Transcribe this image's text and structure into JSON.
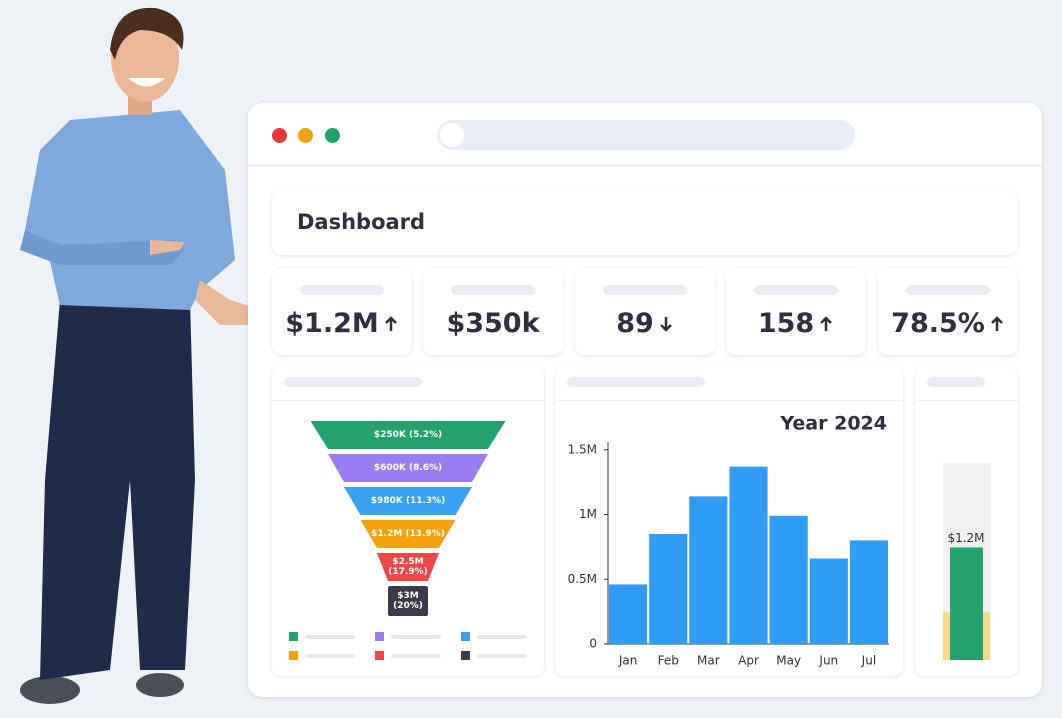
{
  "header": {
    "title": "Dashboard"
  },
  "kpis": [
    {
      "value": "$1.2M",
      "trend": "up"
    },
    {
      "value": "$350k"
    },
    {
      "value": "89",
      "trend": "down"
    },
    {
      "value": "158",
      "trend": "up"
    },
    {
      "value": "78.5%",
      "trend": "up"
    }
  ],
  "funnel": {
    "stages": [
      {
        "label": "$250K (5.2%)",
        "color": "#23a26d"
      },
      {
        "label": "$600K (8.6%)",
        "color": "#9b7cf2"
      },
      {
        "label": "$980K (11.3%)",
        "color": "#3ba1f2"
      },
      {
        "label": "$1.2M (13.9%)",
        "color": "#f5a00f"
      },
      {
        "label": "$2.5M (17.9%)",
        "color": "#ef4646"
      },
      {
        "label": "$3M (20%)",
        "color": "#3b3b4a"
      }
    ]
  },
  "chart_data": {
    "type": "bar",
    "title": "Year 2024",
    "categories": [
      "Jan",
      "Feb",
      "Mar",
      "Apr",
      "May",
      "Jun",
      "Jul"
    ],
    "values": [
      460000,
      850000,
      1140000,
      1370000,
      990000,
      660000,
      800000
    ],
    "color": "#2f9cf6",
    "ylim": [
      0,
      1560000
    ],
    "yticks": [
      0,
      {
        "value": 500000,
        "label": "0.5M"
      },
      {
        "value": 1000000,
        "label": "1M"
      },
      {
        "value": 1500000,
        "label": "1.5M"
      }
    ]
  },
  "gauge": {
    "value": 1200000,
    "value_label": "$1.2M",
    "max": 2100000,
    "target": 510000,
    "color": "#23a26d",
    "target_color": "#f7d98a"
  }
}
